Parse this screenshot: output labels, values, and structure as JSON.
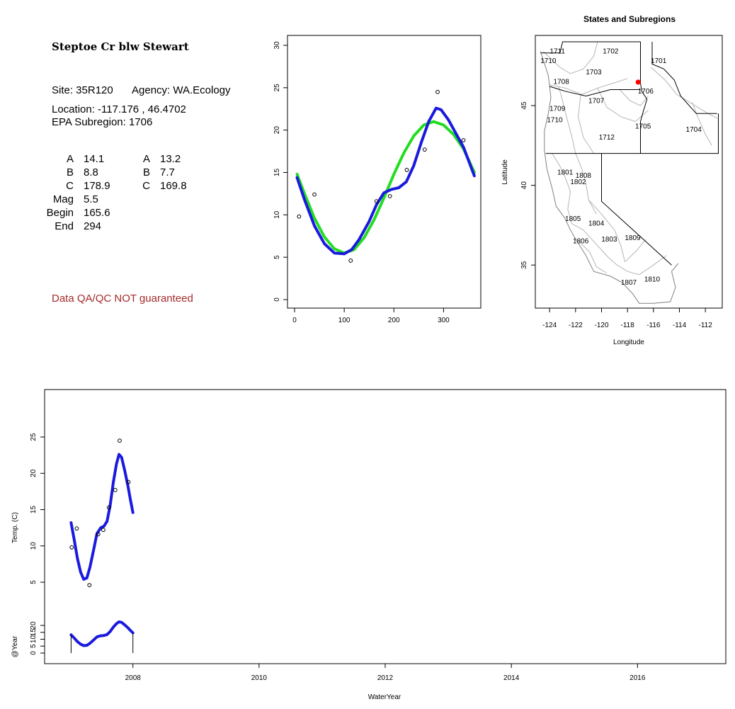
{
  "info": {
    "title": "Steptoe Cr blw Stewart",
    "site_line": "Site: 35R120",
    "agency_line": "Agency: WA.Ecology",
    "location_line": "Location: -117.176 , 46.4702",
    "subregion_line": "EPA Subregion: 1706",
    "params_left": [
      {
        "label": "A",
        "value": "14.1"
      },
      {
        "label": "B",
        "value": "8.8"
      },
      {
        "label": "C",
        "value": "178.9"
      },
      {
        "label": "Mag",
        "value": "5.5"
      },
      {
        "label": "Begin",
        "value": "165.6"
      },
      {
        "label": "End",
        "value": "294"
      }
    ],
    "params_right": [
      {
        "label": "A",
        "value": "13.2"
      },
      {
        "label": "B",
        "value": "7.7"
      },
      {
        "label": "C",
        "value": "169.8"
      }
    ],
    "disclaimer": "Data QA/QC NOT guaranteed",
    "disclaimer_color": "#a52a2a"
  },
  "chart_data": [
    {
      "type": "scatter",
      "id": "doy-fit",
      "xlim": [
        0,
        365
      ],
      "ylim": [
        0,
        30
      ],
      "x_ticks": [
        0,
        100,
        200,
        300
      ],
      "y_ticks": [
        0,
        5,
        10,
        15,
        20,
        25,
        30
      ],
      "points": [
        [
          9,
          9.8
        ],
        [
          40,
          12.4
        ],
        [
          113,
          4.6
        ],
        [
          165,
          11.6
        ],
        [
          192,
          12.2
        ],
        [
          226,
          15.3
        ],
        [
          262,
          17.7
        ],
        [
          288,
          24.5
        ],
        [
          340,
          18.8
        ]
      ],
      "series": [
        {
          "color": "#22dd22",
          "values": [
            [
              5,
              14.8
            ],
            [
              20,
              12.5
            ],
            [
              40,
              9.6
            ],
            [
              60,
              7.4
            ],
            [
              80,
              6.0
            ],
            [
              100,
              5.5
            ],
            [
              120,
              5.9
            ],
            [
              140,
              7.3
            ],
            [
              160,
              9.4
            ],
            [
              180,
              12.0
            ],
            [
              200,
              14.8
            ],
            [
              220,
              17.3
            ],
            [
              240,
              19.3
            ],
            [
              260,
              20.6
            ],
            [
              280,
              21.0
            ],
            [
              300,
              20.6
            ],
            [
              320,
              19.5
            ],
            [
              340,
              17.8
            ],
            [
              362,
              15.0
            ]
          ]
        },
        {
          "color": "#1a1adf",
          "values": [
            [
              5,
              14.4
            ],
            [
              20,
              11.8
            ],
            [
              40,
              8.7
            ],
            [
              60,
              6.6
            ],
            [
              80,
              5.5
            ],
            [
              100,
              5.4
            ],
            [
              115,
              5.9
            ],
            [
              130,
              7.1
            ],
            [
              150,
              9.2
            ],
            [
              165,
              11.2
            ],
            [
              180,
              12.6
            ],
            [
              195,
              13.0
            ],
            [
              210,
              13.2
            ],
            [
              225,
              13.9
            ],
            [
              240,
              15.8
            ],
            [
              255,
              18.5
            ],
            [
              270,
              21.0
            ],
            [
              285,
              22.6
            ],
            [
              295,
              22.4
            ],
            [
              310,
              21.2
            ],
            [
              325,
              19.6
            ],
            [
              340,
              18.0
            ],
            [
              362,
              14.6
            ]
          ]
        }
      ]
    },
    {
      "type": "map",
      "id": "subregions",
      "title": "States and Subregions",
      "xlabel": "Longitude",
      "ylabel": "Latitude",
      "xlim": [
        -125.1,
        -110.7
      ],
      "ylim": [
        32.3,
        49.4
      ],
      "x_ticks": [
        -124,
        -122,
        -120,
        -118,
        -116,
        -114,
        -112
      ],
      "y_ticks": [
        35,
        40,
        45
      ],
      "site_point": {
        "lon": -117.176,
        "lat": 46.4702,
        "color": "#ff0000"
      },
      "region_labels": [
        {
          "label": "1711",
          "lon": -123.4,
          "lat": 48.4
        },
        {
          "label": "1702",
          "lon": -119.3,
          "lat": 48.4
        },
        {
          "label": "1701",
          "lon": -115.6,
          "lat": 47.8
        },
        {
          "label": "1710",
          "lon": -124.1,
          "lat": 47.8
        },
        {
          "label": "1703",
          "lon": -120.6,
          "lat": 47.1
        },
        {
          "label": "1708",
          "lon": -123.1,
          "lat": 46.5
        },
        {
          "label": "1706",
          "lon": -116.6,
          "lat": 45.9
        },
        {
          "label": "1707",
          "lon": -120.4,
          "lat": 45.3
        },
        {
          "label": "1709",
          "lon": -123.4,
          "lat": 44.8
        },
        {
          "label": "1710",
          "lon": -123.6,
          "lat": 44.1
        },
        {
          "label": "1705",
          "lon": -116.8,
          "lat": 43.7
        },
        {
          "label": "1704",
          "lon": -112.9,
          "lat": 43.5
        },
        {
          "label": "1712",
          "lon": -119.6,
          "lat": 43.0
        },
        {
          "label": "1801",
          "lon": -122.8,
          "lat": 40.8
        },
        {
          "label": "1808",
          "lon": -121.4,
          "lat": 40.6
        },
        {
          "label": "1802",
          "lon": -121.8,
          "lat": 40.2
        },
        {
          "label": "1805",
          "lon": -122.2,
          "lat": 37.9
        },
        {
          "label": "1804",
          "lon": -120.4,
          "lat": 37.6
        },
        {
          "label": "1806",
          "lon": -121.6,
          "lat": 36.5
        },
        {
          "label": "1803",
          "lon": -119.4,
          "lat": 36.6
        },
        {
          "label": "1809",
          "lon": -117.6,
          "lat": 36.7
        },
        {
          "label": "1807",
          "lon": -117.9,
          "lat": 33.9
        },
        {
          "label": "1810",
          "lon": -116.1,
          "lat": 34.1
        }
      ]
    },
    {
      "type": "line",
      "id": "time-series",
      "xlabel": "WaterYear",
      "ylabel": "Temp. (C)",
      "ylabel2": "@Year",
      "xlim": [
        2006.6,
        2017.4
      ],
      "x_ticks": [
        2008,
        2010,
        2012,
        2014,
        2016
      ],
      "y_ticks": [
        5,
        10,
        15,
        20,
        25
      ],
      "y_ticks_lower": [
        0,
        5,
        10,
        15,
        20
      ],
      "points": [
        [
          2007.03,
          9.8
        ],
        [
          2007.11,
          12.4
        ],
        [
          2007.31,
          4.6
        ],
        [
          2007.45,
          11.6
        ],
        [
          2007.53,
          12.2
        ],
        [
          2007.62,
          15.3
        ],
        [
          2007.72,
          17.7
        ],
        [
          2007.79,
          24.5
        ],
        [
          2007.93,
          18.8
        ]
      ],
      "series": [
        {
          "color": "#1a1adf",
          "values": [
            [
              2007.02,
              13.2
            ],
            [
              2007.07,
              10.8
            ],
            [
              2007.12,
              8.3
            ],
            [
              2007.17,
              6.4
            ],
            [
              2007.22,
              5.4
            ],
            [
              2007.27,
              5.6
            ],
            [
              2007.32,
              7.1
            ],
            [
              2007.38,
              9.6
            ],
            [
              2007.43,
              11.7
            ],
            [
              2007.49,
              12.5
            ],
            [
              2007.54,
              12.7
            ],
            [
              2007.59,
              13.4
            ],
            [
              2007.64,
              15.6
            ],
            [
              2007.69,
              18.8
            ],
            [
              2007.74,
              21.3
            ],
            [
              2007.78,
              22.6
            ],
            [
              2007.82,
              22.2
            ],
            [
              2007.87,
              20.4
            ],
            [
              2007.92,
              18.3
            ],
            [
              2007.96,
              16.4
            ],
            [
              2008.0,
              14.6
            ]
          ]
        }
      ]
    }
  ]
}
